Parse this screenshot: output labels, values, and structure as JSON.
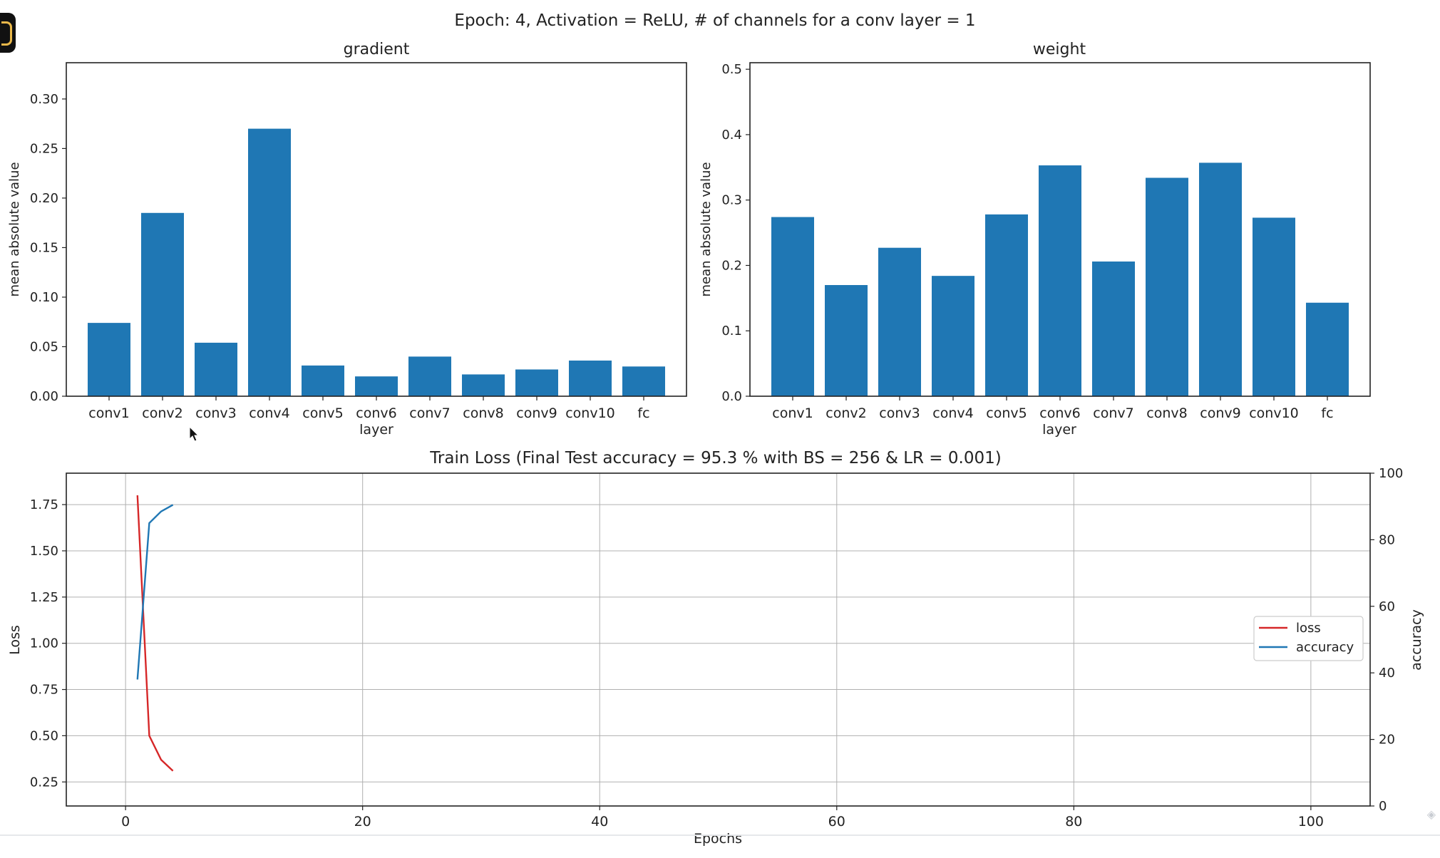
{
  "figure_title": "Epoch: 4, Activation = ReLU, # of channels for a conv layer = 1",
  "ui": {
    "badge_icon": "app-badge-icon",
    "cursor_icon": "mouse-pointer-icon"
  },
  "colors": {
    "bar": "#1f77b4",
    "loss": "#d62728",
    "accuracy": "#1f77b4",
    "grid": "#b0b0b0"
  },
  "chart_data": [
    {
      "type": "bar",
      "title": "gradient",
      "xlabel": "layer",
      "ylabel": "mean absolute value",
      "categories": [
        "conv1",
        "conv2",
        "conv3",
        "conv4",
        "conv5",
        "conv6",
        "conv7",
        "conv8",
        "conv9",
        "conv10",
        "fc"
      ],
      "values": [
        0.074,
        0.185,
        0.054,
        0.27,
        0.031,
        0.02,
        0.04,
        0.022,
        0.027,
        0.036,
        0.03
      ],
      "ylim": [
        0,
        0.3366
      ],
      "yticks": [
        0.0,
        0.05,
        0.1,
        0.15,
        0.2,
        0.25,
        0.3
      ],
      "ytick_labels": [
        "0.00",
        "0.05",
        "0.10",
        "0.15",
        "0.20",
        "0.25",
        "0.30"
      ],
      "grid": false
    },
    {
      "type": "bar",
      "title": "weight",
      "xlabel": "layer",
      "ylabel": "mean absolute value",
      "categories": [
        "conv1",
        "conv2",
        "conv3",
        "conv4",
        "conv5",
        "conv6",
        "conv7",
        "conv8",
        "conv9",
        "conv10",
        "fc"
      ],
      "values": [
        0.274,
        0.17,
        0.227,
        0.184,
        0.278,
        0.353,
        0.206,
        0.334,
        0.357,
        0.273,
        0.143
      ],
      "ylim": [
        0,
        0.51
      ],
      "yticks": [
        0.0,
        0.1,
        0.2,
        0.3,
        0.4,
        0.5
      ],
      "ytick_labels": [
        "0.0",
        "0.1",
        "0.2",
        "0.3",
        "0.4",
        "0.5"
      ],
      "grid": false
    },
    {
      "type": "line",
      "title": "Train Loss (Final Test accuracy = 95.3 % with BS = 256 & LR = 0.001)",
      "xlabel": "Epochs",
      "ylabel": "Loss",
      "y2label": "accuracy",
      "xlim": [
        -5,
        105
      ],
      "xticks": [
        0,
        20,
        40,
        60,
        80,
        100
      ],
      "ylim": [
        0.12,
        1.92
      ],
      "yticks": [
        0.25,
        0.5,
        0.75,
        1.0,
        1.25,
        1.5,
        1.75
      ],
      "ytick_labels": [
        "0.25",
        "0.50",
        "0.75",
        "1.00",
        "1.25",
        "1.50",
        "1.75"
      ],
      "y2lim": [
        0,
        100
      ],
      "y2ticks": [
        0,
        20,
        40,
        60,
        80,
        100
      ],
      "grid": true,
      "legend_position": "center-right",
      "series": [
        {
          "name": "loss",
          "axis": "left",
          "x": [
            1,
            2,
            3,
            4
          ],
          "y": [
            1.8,
            0.5,
            0.37,
            0.31
          ]
        },
        {
          "name": "accuracy",
          "axis": "right",
          "x": [
            1,
            2,
            3,
            4
          ],
          "y": [
            38,
            85,
            88.5,
            90.5
          ]
        }
      ]
    }
  ]
}
